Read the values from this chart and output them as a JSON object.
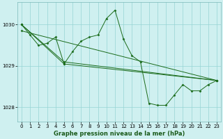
{
  "title": "Graphe pression niveau de la mer (hPa)",
  "background_color": "#cff0f0",
  "grid_color": "#96d4d4",
  "line_color": "#1a6b1a",
  "marker_color": "#1a6b1a",
  "xlim": [
    -0.5,
    23.5
  ],
  "ylim": [
    1027.65,
    1030.55
  ],
  "yticks": [
    1028,
    1029,
    1030
  ],
  "xticks": [
    0,
    1,
    2,
    3,
    4,
    5,
    6,
    7,
    8,
    9,
    10,
    11,
    12,
    13,
    14,
    15,
    16,
    17,
    18,
    19,
    20,
    21,
    22,
    23
  ],
  "series": [
    {
      "x": [
        0,
        1,
        2,
        3,
        4,
        5,
        6,
        7,
        8,
        9,
        10,
        11,
        12,
        13,
        14,
        15,
        16,
        17,
        18,
        19,
        20,
        21,
        22,
        23
      ],
      "y": [
        1030.0,
        1029.75,
        1029.5,
        1029.55,
        1029.7,
        1029.05,
        1029.35,
        1029.6,
        1029.7,
        1029.75,
        1030.15,
        1030.35,
        1029.65,
        1029.25,
        1029.1,
        1028.1,
        1028.05,
        1028.05,
        1028.3,
        1028.55,
        1028.4,
        1028.4,
        1028.55,
        1028.65
      ]
    },
    {
      "x": [
        0,
        5,
        23
      ],
      "y": [
        1030.0,
        1029.1,
        1028.65
      ]
    },
    {
      "x": [
        0,
        5,
        23
      ],
      "y": [
        1030.0,
        1029.05,
        1028.65
      ]
    },
    {
      "x": [
        0,
        23
      ],
      "y": [
        1029.85,
        1028.65
      ]
    }
  ]
}
